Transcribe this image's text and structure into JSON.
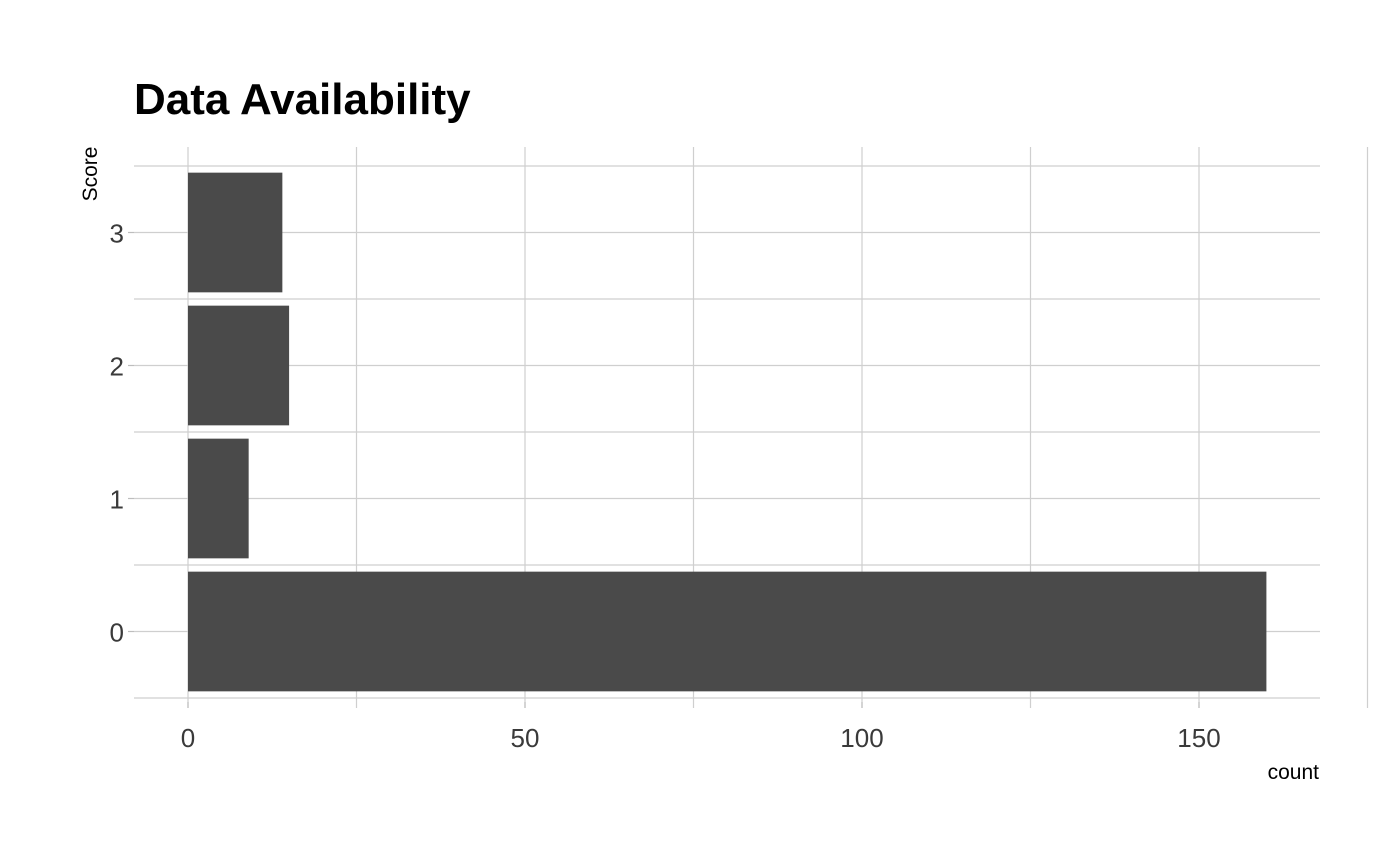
{
  "chart_data": {
    "type": "bar",
    "orientation": "horizontal",
    "title": "Data Availability",
    "xlabel": "count",
    "ylabel": "Score",
    "categories": [
      "0",
      "1",
      "2",
      "3"
    ],
    "values": [
      160,
      9,
      15,
      14
    ],
    "xlim": [
      -8,
      168
    ],
    "x_ticks": [
      0,
      50,
      100,
      150
    ],
    "grid": true,
    "legend": "none",
    "bar_color": "#4a4a4a"
  }
}
